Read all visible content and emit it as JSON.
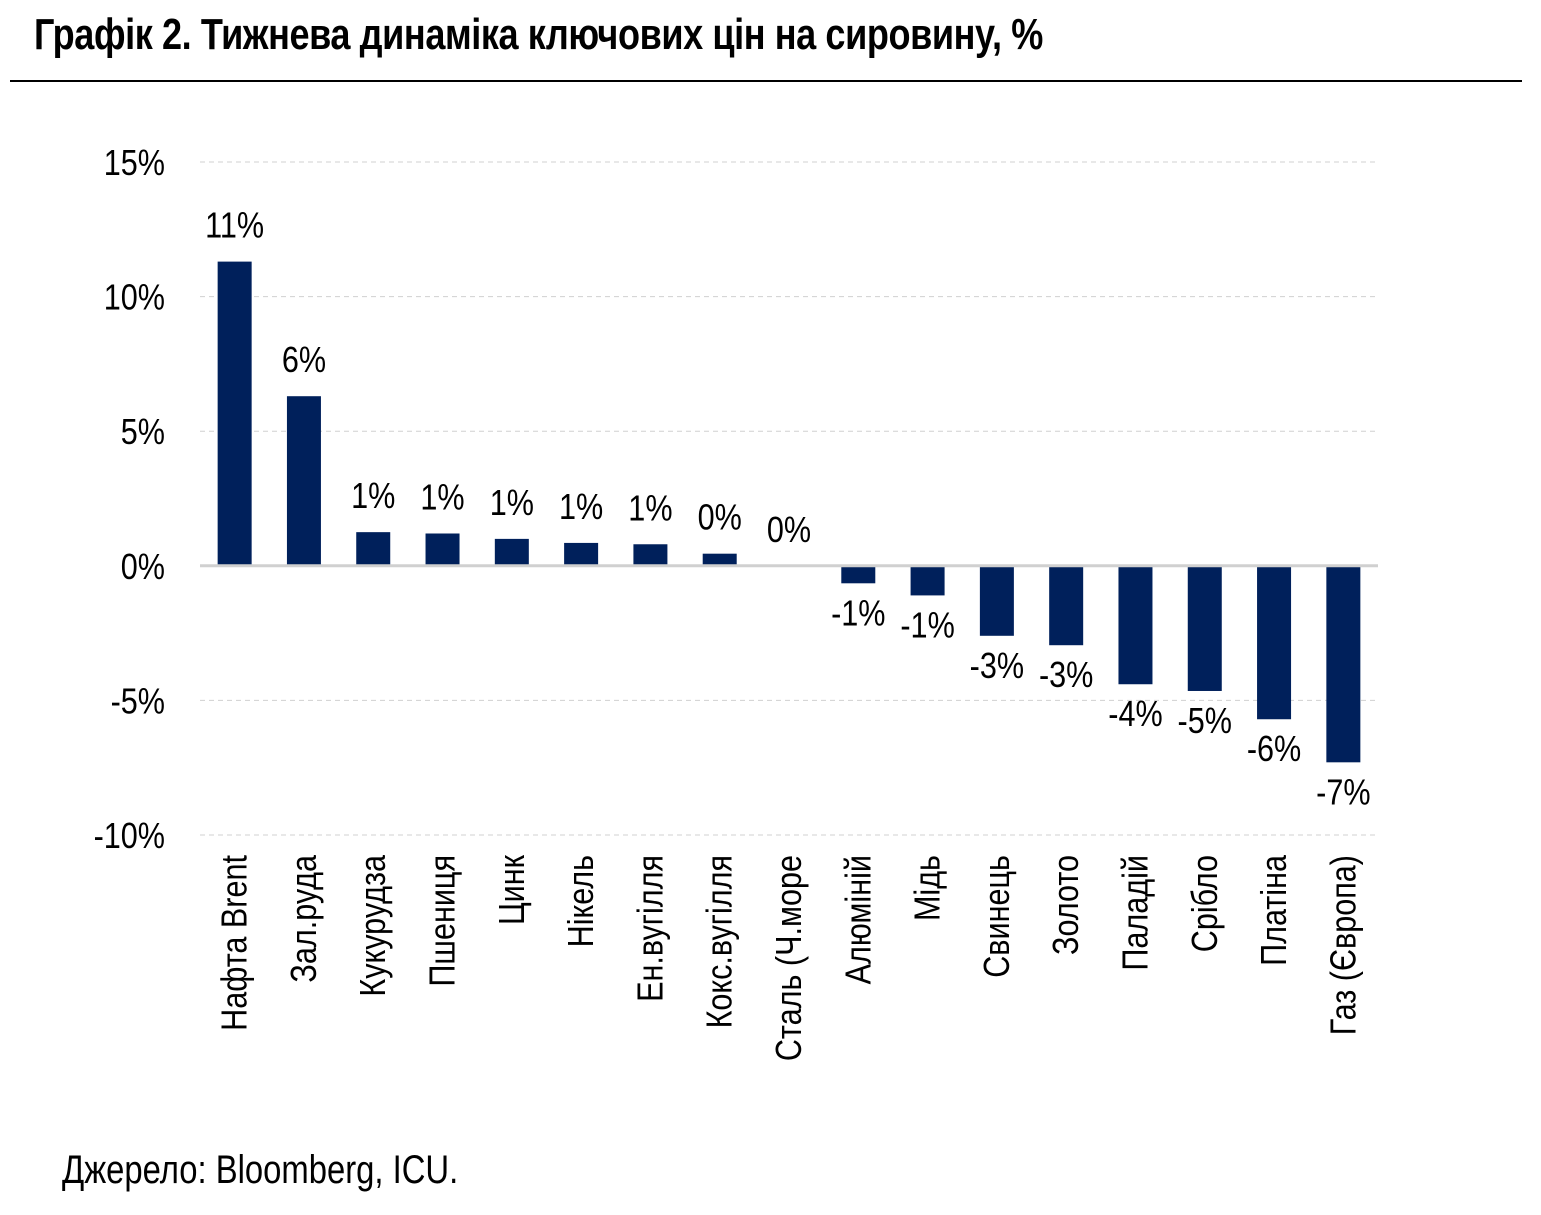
{
  "title": "Графік 2. Тижнева динаміка ключових цін на сировину, %",
  "source": "Джерело: Bloomberg, ICU.",
  "colors": {
    "bar": "#00205B",
    "grid": "#d0d0d0",
    "zero": "#d0d0d0"
  },
  "chart_data": {
    "type": "bar",
    "title": "Графік 2. Тижнева динаміка ключових цін на сировину, %",
    "xlabel": "",
    "ylabel": "",
    "ylim": [
      -10,
      15
    ],
    "yticks": [
      15,
      10,
      5,
      0,
      -5,
      -10
    ],
    "ytick_labels": [
      "15%",
      "10%",
      "5%",
      "0%",
      "-5%",
      "-10%"
    ],
    "grid": true,
    "categories": [
      "Нафта Brent",
      "Зал.руда",
      "Кукурудза",
      "Пшениця",
      "Цинк",
      "Нікель",
      "Ен.вугілля",
      "Кокс.вугілля",
      "Сталь (Ч.море",
      "Алюміній",
      "Мідь",
      "Свинець",
      "Золото",
      "Паладій",
      "Срібло",
      "Платіна",
      "Газ (Європа)"
    ],
    "values": [
      11.3,
      6.3,
      1.25,
      1.2,
      1.0,
      0.85,
      0.8,
      0.45,
      0.0,
      -0.65,
      -1.1,
      -2.6,
      -2.95,
      -4.4,
      -4.65,
      -5.7,
      -7.3
    ],
    "data_labels": [
      "11%",
      "6%",
      "1%",
      "1%",
      "1%",
      "1%",
      "1%",
      "0%",
      "0%",
      "-1%",
      "-1%",
      "-3%",
      "-3%",
      "-4%",
      "-5%",
      "-6%",
      "-7%"
    ]
  }
}
